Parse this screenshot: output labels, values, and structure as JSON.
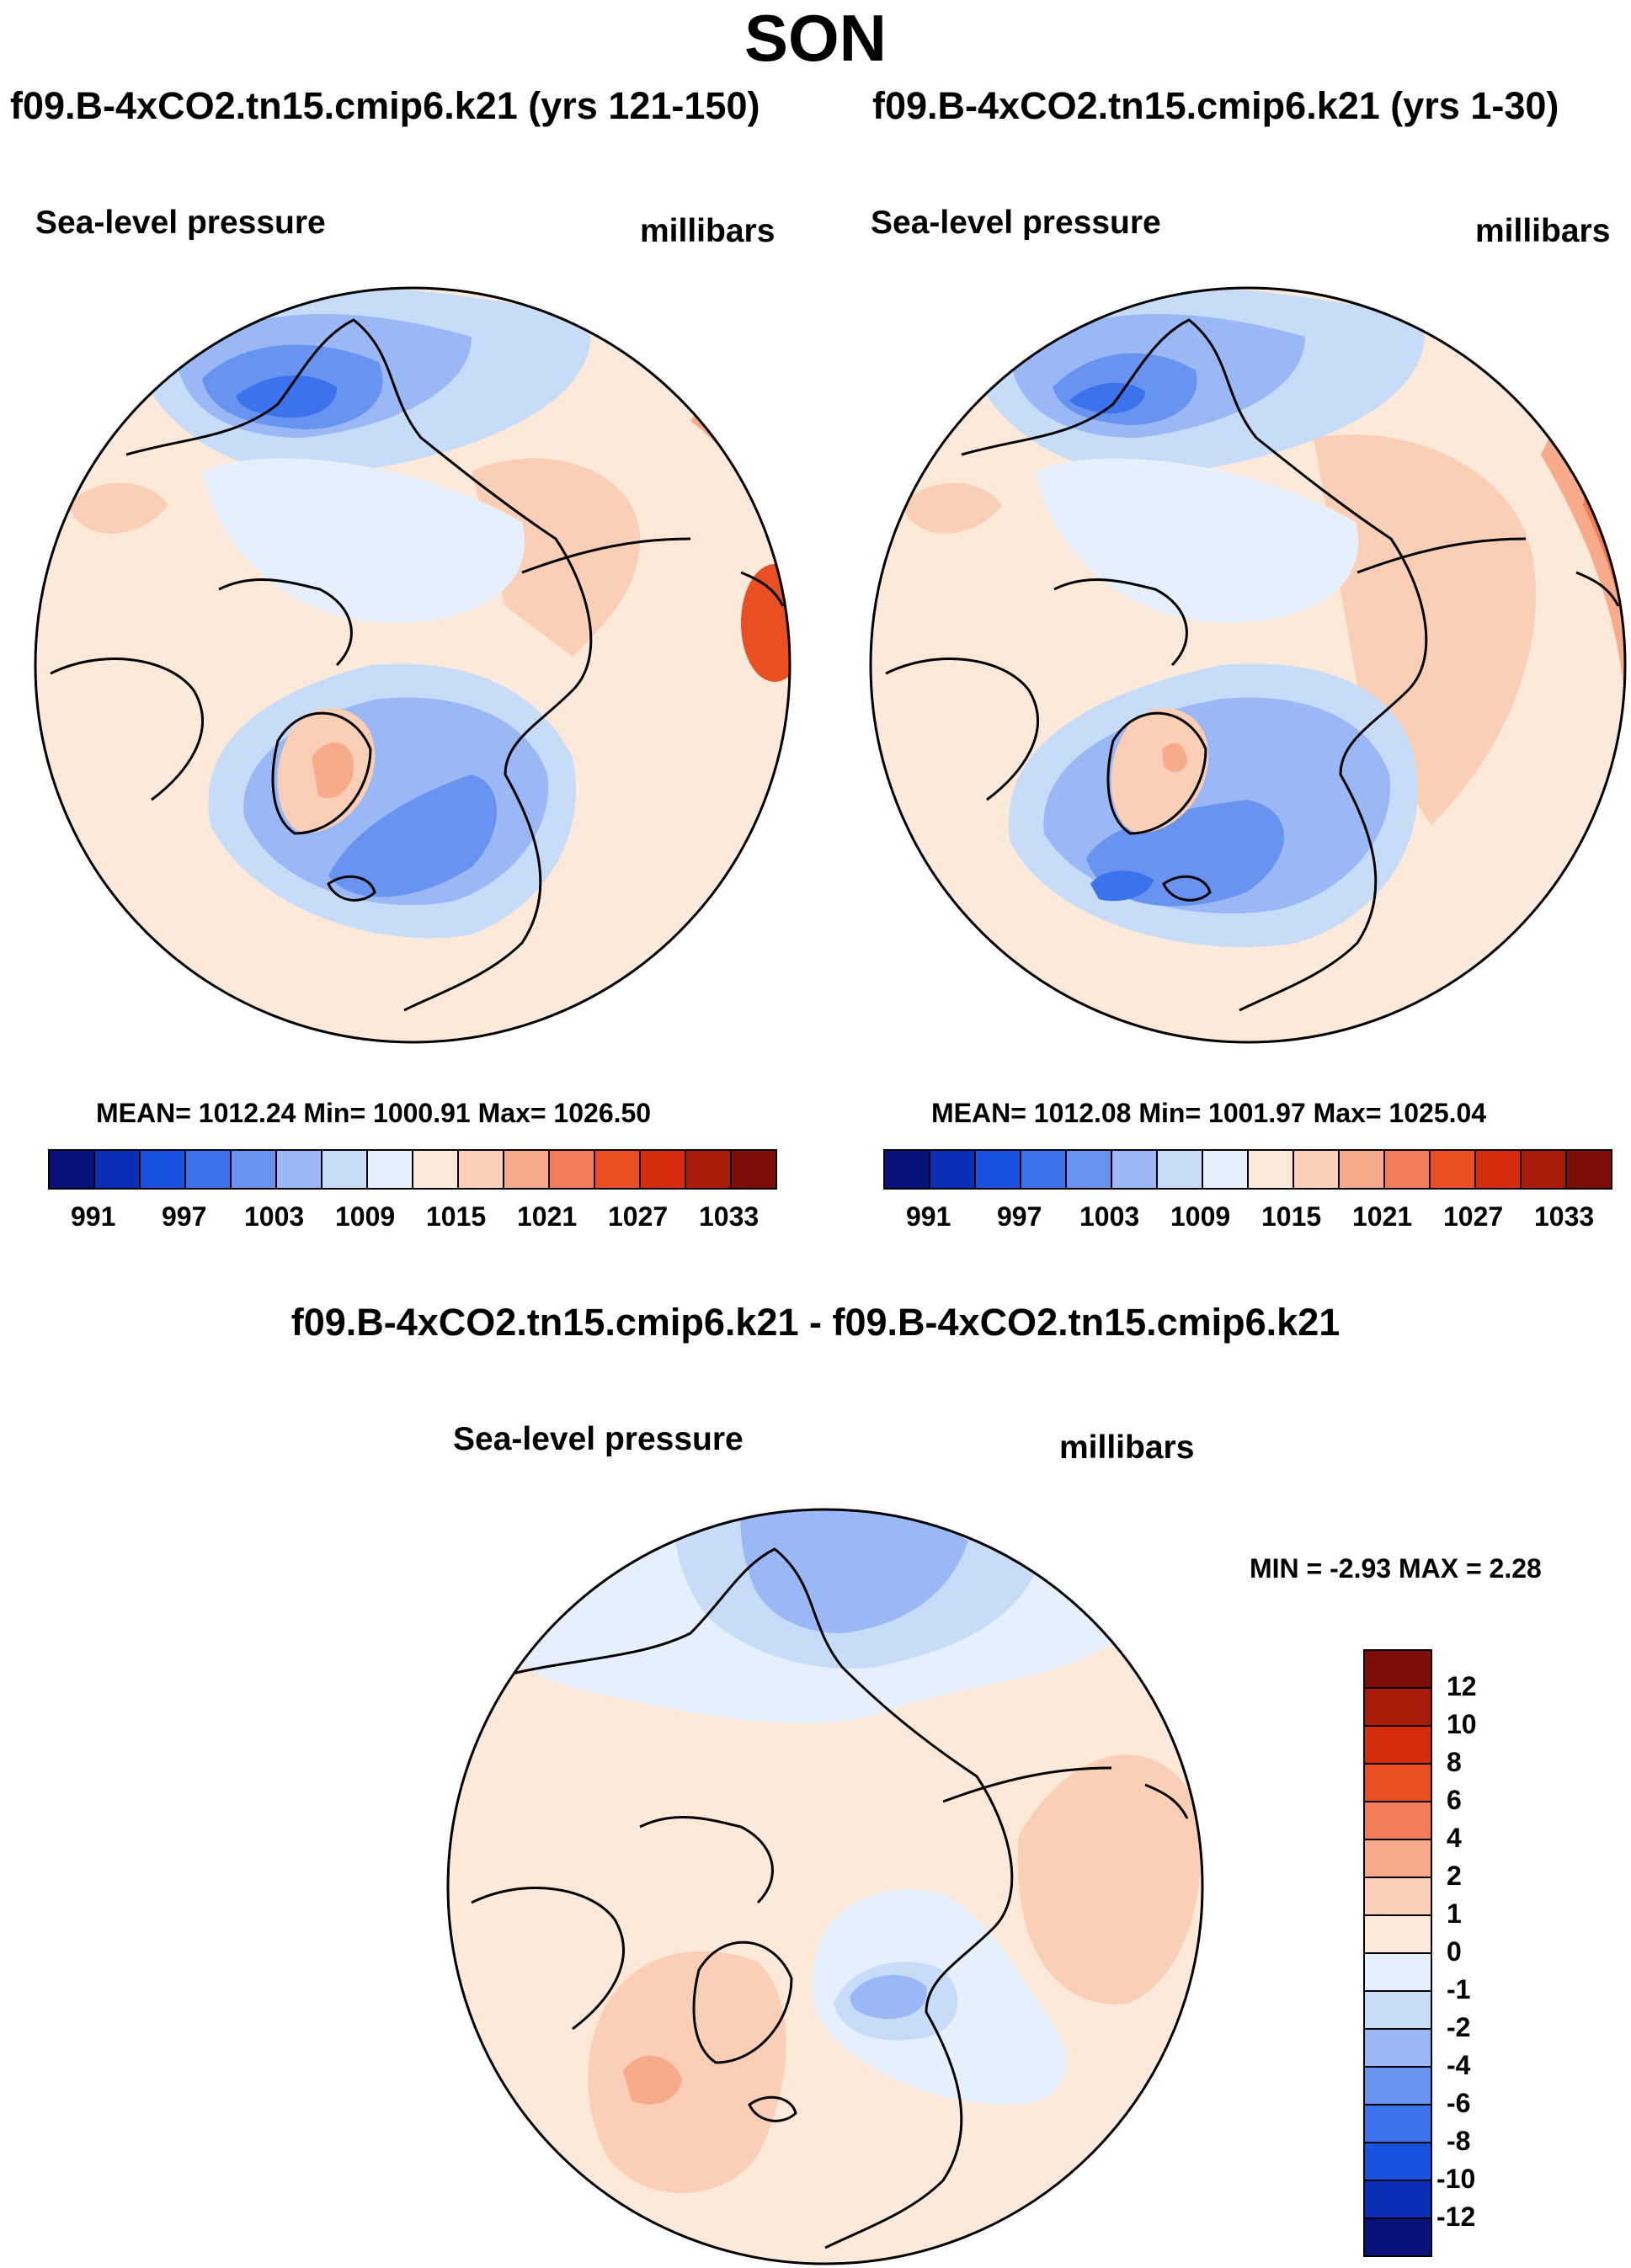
{
  "season": "SON",
  "panels": [
    {
      "title": "f09.B-4xCO2.tn15.cmip6.k21 (yrs 121-150)",
      "variable": "Sea-level pressure",
      "units": "millibars",
      "stats": "MEAN= 1012.24  Min= 1000.91  Max= 1026.50"
    },
    {
      "title": "f09.B-4xCO2.tn15.cmip6.k21 (yrs 1-30)",
      "variable": "Sea-level pressure",
      "units": "millibars",
      "stats": "MEAN= 1012.08  Min= 1001.97  Max= 1025.04"
    }
  ],
  "diff": {
    "title": "f09.B-4xCO2.tn15.cmip6.k21 - f09.B-4xCO2.tn15.cmip6.k21",
    "variable": "Sea-level pressure",
    "units": "millibars",
    "stats": "MIN =  -2.93 MAX =   2.28"
  },
  "colorbar": {
    "ticks": [
      "991",
      "997",
      "1003",
      "1009",
      "1015",
      "1021",
      "1027",
      "1033"
    ],
    "colors": [
      "#08117a",
      "#0a2fb6",
      "#1952e0",
      "#3a73ec",
      "#6893f0",
      "#9ab8f5",
      "#c7dcf9",
      "#e6f0fd",
      "#fde9d9",
      "#fbcfb6",
      "#f7ab8a",
      "#f17c55",
      "#ea4e23",
      "#d72c0b",
      "#aa1b0a",
      "#7e0d09"
    ]
  },
  "diff_colorbar": {
    "labels": [
      "12",
      "10",
      "8",
      "6",
      "4",
      "2",
      "1",
      "0",
      "-1",
      "-2",
      "-4",
      "-6",
      "-8",
      "-10",
      "-12"
    ],
    "colors": [
      "#7e0d09",
      "#aa1b0a",
      "#d72c0b",
      "#ea4e23",
      "#f17c55",
      "#f7ab8a",
      "#fbcfb6",
      "#fde9d9",
      "#e6f0fd",
      "#c7dcf9",
      "#9ab8f5",
      "#6893f0",
      "#3a73ec",
      "#1952e0",
      "#0a2fb6",
      "#08117a"
    ]
  }
}
